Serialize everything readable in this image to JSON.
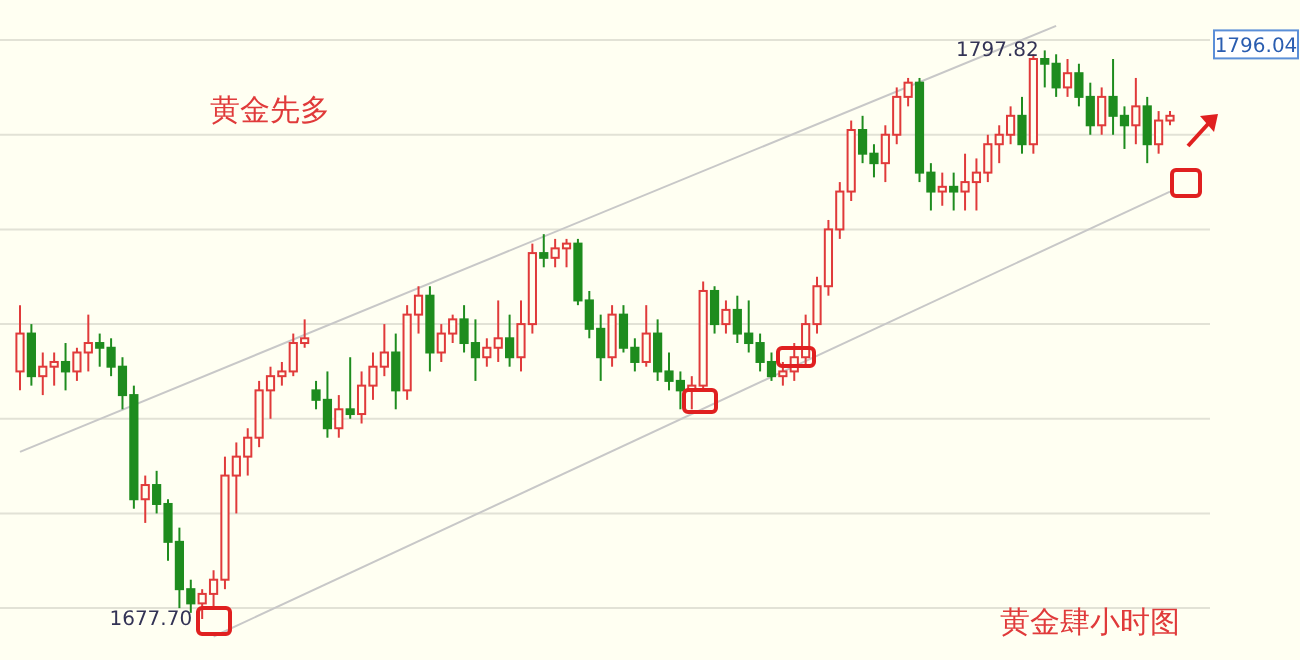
{
  "chart_data": {
    "type": "candlestick",
    "title": "黄金先多",
    "annotations": [
      "黄金肆小时图",
      "1797.82",
      "1677.70",
      "1796.04"
    ],
    "categories": [
      null,
      null,
      null,
      null,
      null,
      null,
      null,
      null,
      null,
      null,
      null,
      null,
      null,
      null,
      null,
      null,
      null,
      null,
      null,
      null,
      null,
      null,
      null,
      null,
      null,
      null,
      null,
      null,
      null,
      null,
      null,
      null,
      null,
      null,
      null,
      null,
      null,
      null,
      null,
      null,
      null,
      null,
      null,
      null,
      null,
      null,
      null,
      null,
      null,
      null,
      null,
      null,
      null,
      null,
      null,
      null,
      null,
      null,
      null,
      null,
      null,
      null,
      null,
      null,
      null,
      null,
      null,
      null,
      null,
      null,
      null,
      null,
      null,
      null,
      null,
      null,
      null,
      null,
      null,
      null,
      null,
      null,
      null,
      null,
      null,
      null,
      null,
      null,
      null,
      null,
      null,
      null,
      null,
      null,
      null,
      null,
      null,
      null,
      null,
      null,
      null,
      null
    ],
    "ohlc": [
      [
        1730,
        1744,
        1726,
        1738
      ],
      [
        1738,
        1740,
        1727,
        1729
      ],
      [
        1729,
        1734,
        1725,
        1731
      ],
      [
        1731,
        1734,
        1727,
        1732
      ],
      [
        1732,
        1736,
        1726,
        1730
      ],
      [
        1730,
        1735,
        1728,
        1734
      ],
      [
        1734,
        1742,
        1730,
        1736
      ],
      [
        1736,
        1738,
        1731,
        1735
      ],
      [
        1735,
        1737,
        1729,
        1731
      ],
      [
        1731,
        1733,
        1722,
        1725
      ],
      [
        1725,
        1727,
        1701,
        1703
      ],
      [
        1703,
        1708,
        1698,
        1706
      ],
      [
        1706,
        1709,
        1700,
        1702
      ],
      [
        1702,
        1703,
        1690,
        1694
      ],
      [
        1694,
        1697,
        1680,
        1684
      ],
      [
        1684,
        1686,
        1679,
        1681
      ],
      [
        1681,
        1684,
        1677.7,
        1683
      ],
      [
        1683,
        1688,
        1680,
        1686
      ],
      [
        1686,
        1712,
        1684,
        1708
      ],
      [
        1708,
        1715,
        1700,
        1712
      ],
      [
        1712,
        1718,
        1708,
        1716
      ],
      [
        1716,
        1728,
        1714,
        1726
      ],
      [
        1726,
        1731,
        1720,
        1729
      ],
      [
        1729,
        1732,
        1727,
        1730
      ],
      [
        1730,
        1738,
        1729,
        1736
      ],
      [
        1736,
        1741,
        1735,
        1737
      ],
      [
        1726,
        1728,
        1722,
        1724
      ],
      [
        1724,
        1730,
        1716,
        1718
      ],
      [
        1718,
        1725,
        1716,
        1722
      ],
      [
        1722,
        1733,
        1720,
        1721
      ],
      [
        1721,
        1730,
        1719,
        1727
      ],
      [
        1727,
        1734,
        1724,
        1731
      ],
      [
        1731,
        1740,
        1729,
        1734
      ],
      [
        1734,
        1738,
        1722,
        1726
      ],
      [
        1726,
        1744,
        1724,
        1742
      ],
      [
        1742,
        1748,
        1738,
        1746
      ],
      [
        1746,
        1748,
        1730,
        1734
      ],
      [
        1734,
        1740,
        1732,
        1738
      ],
      [
        1738,
        1742,
        1736,
        1741
      ],
      [
        1741,
        1744,
        1734,
        1736
      ],
      [
        1736,
        1741,
        1728,
        1733
      ],
      [
        1733,
        1737,
        1731,
        1735
      ],
      [
        1735,
        1745,
        1732,
        1737
      ],
      [
        1737,
        1742,
        1731,
        1733
      ],
      [
        1733,
        1745,
        1730,
        1740
      ],
      [
        1740,
        1757,
        1738,
        1755
      ],
      [
        1755,
        1759,
        1752,
        1754
      ],
      [
        1754,
        1758,
        1752,
        1756
      ],
      [
        1756,
        1758,
        1752,
        1757
      ],
      [
        1757,
        1758,
        1744,
        1745
      ],
      [
        1745,
        1747,
        1737,
        1739
      ],
      [
        1739,
        1742,
        1728,
        1733
      ],
      [
        1733,
        1744,
        1731,
        1742
      ],
      [
        1742,
        1744,
        1734,
        1735
      ],
      [
        1735,
        1737,
        1730,
        1732
      ],
      [
        1732,
        1744,
        1731,
        1738
      ],
      [
        1738,
        1741,
        1728,
        1730
      ],
      [
        1730,
        1734,
        1726,
        1728
      ],
      [
        1728,
        1730,
        1722,
        1726
      ],
      [
        1726,
        1729,
        1722,
        1727
      ],
      [
        1727,
        1749,
        1726,
        1747
      ],
      [
        1747,
        1748,
        1738,
        1740
      ],
      [
        1740,
        1745,
        1738,
        1743
      ],
      [
        1743,
        1746,
        1736,
        1738
      ],
      [
        1738,
        1745,
        1734,
        1736
      ],
      [
        1736,
        1738,
        1730,
        1732
      ],
      [
        1732,
        1734,
        1728,
        1729
      ],
      [
        1729,
        1732,
        1727,
        1730
      ],
      [
        1730,
        1736,
        1728,
        1733
      ],
      [
        1733,
        1742,
        1731,
        1740
      ],
      [
        1740,
        1750,
        1738,
        1748
      ],
      [
        1748,
        1762,
        1746,
        1760
      ],
      [
        1760,
        1770,
        1758,
        1768
      ],
      [
        1768,
        1783,
        1766,
        1781
      ],
      [
        1781,
        1784,
        1774,
        1776
      ],
      [
        1776,
        1778,
        1771,
        1774
      ],
      [
        1774,
        1782,
        1770,
        1780
      ],
      [
        1780,
        1790,
        1778,
        1788
      ],
      [
        1788,
        1792,
        1786,
        1791
      ],
      [
        1791,
        1792,
        1770,
        1772
      ],
      [
        1772,
        1774,
        1764,
        1768
      ],
      [
        1768,
        1772,
        1765,
        1769
      ],
      [
        1769,
        1772,
        1764,
        1768
      ],
      [
        1768,
        1776,
        1764,
        1770
      ],
      [
        1770,
        1775,
        1764,
        1772
      ],
      [
        1772,
        1780,
        1770,
        1778
      ],
      [
        1778,
        1782,
        1774,
        1780
      ],
      [
        1780,
        1786,
        1778,
        1784
      ],
      [
        1784,
        1788,
        1776,
        1778
      ],
      [
        1778,
        1797,
        1776,
        1796
      ],
      [
        1796,
        1797.82,
        1790,
        1795
      ],
      [
        1795,
        1797,
        1788,
        1790
      ],
      [
        1790,
        1796,
        1788,
        1793
      ],
      [
        1793,
        1795,
        1786,
        1788
      ],
      [
        1788,
        1791,
        1780,
        1782
      ],
      [
        1782,
        1790,
        1780,
        1788
      ],
      [
        1788,
        1796,
        1780,
        1784
      ],
      [
        1784,
        1786,
        1777,
        1782
      ],
      [
        1782,
        1792,
        1778,
        1786
      ],
      [
        1786,
        1788,
        1774,
        1778
      ],
      [
        1778,
        1785,
        1776,
        1783
      ],
      [
        1783,
        1785,
        1782,
        1784
      ]
    ],
    "series": [
      {
        "type": "line",
        "color": "#c8c8c8",
        "values": [
          1713,
          null,
          null,
          null,
          null,
          null,
          null,
          null,
          null,
          null,
          null,
          null,
          null,
          null,
          null,
          null,
          null,
          null,
          null,
          null,
          null,
          null,
          null,
          null,
          null,
          null,
          null,
          null,
          null,
          null,
          null,
          null,
          null,
          null,
          null,
          null,
          null,
          null,
          null,
          null,
          null,
          null,
          null,
          null,
          null,
          null,
          null,
          null,
          null,
          null,
          null,
          null,
          null,
          null,
          null,
          null,
          null,
          null,
          null,
          null,
          null,
          null,
          null,
          null,
          null,
          null,
          null,
          null,
          null,
          null,
          null,
          null,
          null,
          null,
          null,
          null,
          null,
          null,
          null,
          null,
          null,
          null,
          null,
          null,
          null,
          null,
          null,
          null,
          null,
          null,
          null,
          1803,
          null,
          null,
          null,
          null,
          null,
          null,
          null,
          null,
          null,
          null
        ]
      },
      {
        "type": "line",
        "color": "#c8c8c8",
        "values": [
          null,
          null,
          null,
          null,
          null,
          null,
          null,
          null,
          null,
          null,
          null,
          null,
          null,
          null,
          null,
          null,
          null,
          1674,
          null,
          null,
          null,
          null,
          null,
          null,
          null,
          null,
          null,
          null,
          null,
          null,
          null,
          null,
          null,
          null,
          null,
          null,
          null,
          null,
          null,
          null,
          null,
          null,
          null,
          null,
          null,
          null,
          null,
          null,
          null,
          null,
          null,
          null,
          null,
          null,
          null,
          null,
          null,
          null,
          null,
          null,
          null,
          null,
          null,
          null,
          null,
          null,
          null,
          null,
          null,
          null,
          null,
          null,
          null,
          null,
          null,
          null,
          null,
          null,
          null,
          null,
          null,
          null,
          null,
          null,
          null,
          null,
          null,
          null,
          null,
          null,
          null,
          null,
          null,
          null,
          null,
          null,
          null,
          null,
          null,
          null,
          null,
          1768
        ]
      }
    ],
    "yticks": [
      {
        "value": 1680,
        "label": null
      },
      {
        "value": 1700,
        "label": null
      },
      {
        "value": 1720,
        "label": null
      },
      {
        "value": 1740,
        "label": null
      },
      {
        "value": 1760,
        "label": null
      },
      {
        "value": 1780,
        "label": null
      },
      {
        "value": 1800,
        "label": null
      }
    ],
    "grid": "y"
  }
}
